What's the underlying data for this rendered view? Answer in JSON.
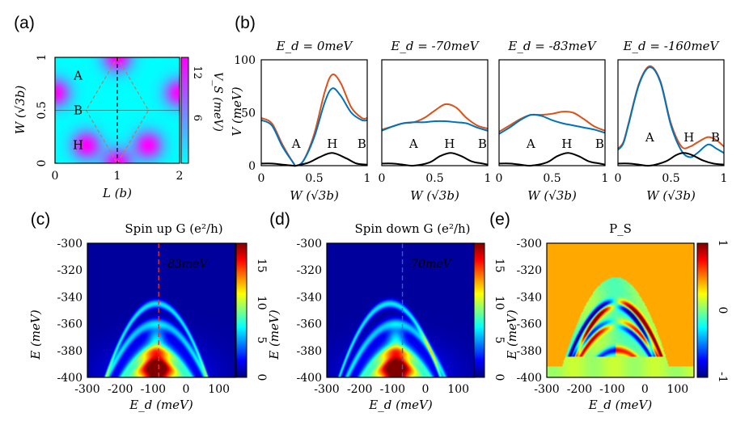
{
  "chart_data": [
    {
      "panel": "(a)",
      "type": "heatmap",
      "label": "(a)",
      "xlabel": "L (b)",
      "ylabel": "W (√3b)",
      "xticks": [
        "0",
        "1",
        "2"
      ],
      "yticks": [
        "0",
        "0.5",
        "1"
      ],
      "xlim": [
        0,
        2
      ],
      "ylim": [
        0,
        1
      ],
      "colorbar": {
        "label": "V_S (meV)",
        "ticks": [
          "12",
          "6"
        ],
        "range": [
          0,
          14
        ],
        "colors": [
          "#00ffff",
          "#ff00ff"
        ]
      },
      "maxima": [
        [
          0,
          0.667
        ],
        [
          2,
          0.667
        ],
        [
          1,
          0
        ],
        [
          1,
          1
        ],
        [
          0.5,
          0.167
        ],
        [
          1.5,
          0.167
        ]
      ],
      "site_labels": [
        {
          "text": "A",
          "x": 0.5,
          "y": 0.83
        },
        {
          "text": "B",
          "x": 0.5,
          "y": 0.5
        },
        {
          "text": "H",
          "x": 0.5,
          "y": 0.17
        }
      ],
      "dashed_line_x": 1,
      "dashed_line_y": 0.5
    },
    {
      "panel": "(b)",
      "type": "line",
      "label": "(b)",
      "ylabel": "V (meV)",
      "xlabel": "W (√3b)",
      "ylim": [
        0,
        100
      ],
      "xlim": [
        0,
        1
      ],
      "yticks": [
        "0",
        "50",
        "100"
      ],
      "xticks": [
        "0",
        "0.5",
        "1"
      ],
      "series_colors": [
        "#d95319",
        "#0072bd",
        "#000000"
      ],
      "subplots": [
        {
          "title": "E_d = 0meV",
          "series": [
            {
              "name": "orange",
              "x": [
                0,
                0.1,
                0.2,
                0.3,
                0.33,
                0.4,
                0.5,
                0.6,
                0.67,
                0.75,
                0.85,
                0.95,
                1.0
              ],
              "values": [
                45,
                40,
                20,
                3,
                0,
                5,
                30,
                70,
                86,
                78,
                55,
                45,
                45
              ]
            },
            {
              "name": "blue",
              "x": [
                0,
                0.1,
                0.2,
                0.3,
                0.33,
                0.4,
                0.5,
                0.6,
                0.67,
                0.75,
                0.85,
                0.95,
                1.0
              ],
              "values": [
                43,
                38,
                18,
                3,
                0,
                5,
                27,
                60,
                73,
                66,
                50,
                43,
                43
              ]
            },
            {
              "name": "black",
              "x": [
                0,
                0.1,
                0.2,
                0.3,
                0.33,
                0.45,
                0.55,
                0.67,
                0.8,
                0.9,
                1.0
              ],
              "values": [
                2,
                2,
                1,
                0,
                0,
                3,
                8,
                12,
                7,
                2,
                1
              ]
            }
          ],
          "annotations": [
            "A",
            "H",
            "B"
          ]
        },
        {
          "title": "E_d = -70meV",
          "series": [
            {
              "name": "orange",
              "x": [
                0,
                0.1,
                0.2,
                0.3,
                0.4,
                0.5,
                0.6,
                0.7,
                0.8,
                0.9,
                1.0
              ],
              "values": [
                34,
                37,
                40,
                41,
                45,
                52,
                58,
                55,
                45,
                38,
                35
              ]
            },
            {
              "name": "blue",
              "x": [
                0,
                0.1,
                0.2,
                0.3,
                0.4,
                0.5,
                0.6,
                0.7,
                0.8,
                0.9,
                1.0
              ],
              "values": [
                33,
                37,
                40,
                41,
                41,
                42,
                42,
                41,
                40,
                36,
                33
              ]
            },
            {
              "name": "black",
              "x": [
                0,
                0.1,
                0.2,
                0.3,
                0.45,
                0.55,
                0.65,
                0.75,
                0.85,
                0.95,
                1.0
              ],
              "values": [
                2,
                2,
                1,
                0,
                3,
                9,
                12,
                9,
                4,
                2,
                1
              ]
            }
          ],
          "annotations": [
            "A",
            "H",
            "B"
          ]
        },
        {
          "title": "E_d = -83meV",
          "series": [
            {
              "name": "orange",
              "x": [
                0,
                0.1,
                0.2,
                0.3,
                0.4,
                0.5,
                0.6,
                0.7,
                0.8,
                0.9,
                1.0
              ],
              "values": [
                32,
                38,
                44,
                48,
                48,
                49,
                51,
                50,
                44,
                37,
                33
              ]
            },
            {
              "name": "blue",
              "x": [
                0,
                0.1,
                0.2,
                0.3,
                0.4,
                0.5,
                0.6,
                0.7,
                0.8,
                0.9,
                1.0
              ],
              "values": [
                30,
                36,
                43,
                48,
                47,
                43,
                40,
                38,
                36,
                34,
                31
              ]
            },
            {
              "name": "black",
              "x": [
                0,
                0.1,
                0.2,
                0.3,
                0.45,
                0.55,
                0.65,
                0.75,
                0.85,
                0.95,
                1.0
              ],
              "values": [
                2,
                2,
                1,
                0,
                3,
                9,
                12,
                9,
                4,
                2,
                1
              ]
            }
          ],
          "annotations": [
            "A",
            "H",
            "B"
          ]
        },
        {
          "title": "E_d = -160meV",
          "series": [
            {
              "name": "orange",
              "x": [
                0,
                0.05,
                0.1,
                0.2,
                0.3,
                0.4,
                0.5,
                0.6,
                0.68,
                0.75,
                0.85,
                0.93,
                1.0
              ],
              "values": [
                16,
                22,
                40,
                78,
                94,
                80,
                40,
                18,
                18,
                22,
                27,
                24,
                18
              ]
            },
            {
              "name": "blue",
              "x": [
                0,
                0.05,
                0.1,
                0.2,
                0.3,
                0.4,
                0.5,
                0.6,
                0.68,
                0.75,
                0.85,
                0.93,
                1.0
              ],
              "values": [
                15,
                21,
                39,
                77,
                93,
                79,
                38,
                14,
                8,
                12,
                20,
                16,
                12
              ]
            },
            {
              "name": "black",
              "x": [
                0,
                0.1,
                0.2,
                0.3,
                0.45,
                0.55,
                0.62,
                0.7,
                0.8,
                0.9,
                1.0
              ],
              "values": [
                2,
                2,
                1,
                0,
                4,
                10,
                12,
                10,
                5,
                2,
                1
              ]
            }
          ],
          "annotations": [
            "A",
            "H",
            "B"
          ]
        }
      ]
    },
    {
      "panel": "(c)",
      "type": "heatmap",
      "label": "(c)",
      "title": "Spin up G (e²/h)",
      "xlabel": "E_d (meV)",
      "ylabel": "E (meV)",
      "xlim": [
        -300,
        150
      ],
      "ylim": [
        -400,
        -300
      ],
      "xticks": [
        "-300",
        "-200",
        "-100",
        "0",
        "100"
      ],
      "yticks": [
        "-300",
        "-320",
        "-340",
        "-360",
        "-380",
        "-400"
      ],
      "colorbar": {
        "ticks": [
          "15",
          "10",
          "5",
          "0"
        ],
        "range": [
          0,
          18
        ],
        "colormap": "jet"
      },
      "marker_line": {
        "x": -83,
        "color": "#e03030",
        "text": "-83meV"
      }
    },
    {
      "panel": "(d)",
      "type": "heatmap",
      "label": "(d)",
      "title": "Spin down G (e²/h)",
      "xlabel": "E_d (meV)",
      "ylabel": "E (meV)",
      "xlim": [
        -300,
        150
      ],
      "ylim": [
        -400,
        -300
      ],
      "xticks": [
        "-300",
        "-200",
        "-100",
        "0",
        "100"
      ],
      "yticks": [
        "-300",
        "-320",
        "-340",
        "-360",
        "-380",
        "-400"
      ],
      "colorbar": {
        "ticks": [
          "15",
          "10",
          "5",
          "0"
        ],
        "range": [
          0,
          18
        ],
        "colormap": "jet"
      },
      "marker_line": {
        "x": -70,
        "color": "#3060d0",
        "text": "-70meV"
      }
    },
    {
      "panel": "(e)",
      "type": "heatmap",
      "label": "(e)",
      "title": "P_S",
      "xlabel": "E_d (meV)",
      "ylabel": "E (meV)",
      "xlim": [
        -300,
        150
      ],
      "ylim": [
        -400,
        -300
      ],
      "xticks": [
        "-300",
        "-200",
        "-100",
        "0",
        "100"
      ],
      "yticks": [
        "-300",
        "-320",
        "-340",
        "-360",
        "-380",
        "-400"
      ],
      "colorbar": {
        "ticks": [
          "1",
          "0",
          "-1"
        ],
        "range": [
          -1,
          1
        ],
        "colormap": "jet"
      }
    }
  ]
}
